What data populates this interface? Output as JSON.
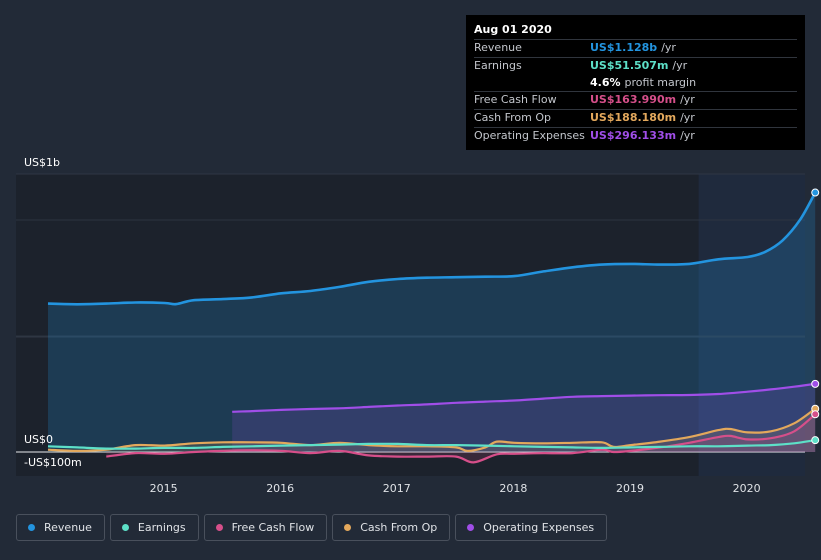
{
  "chart_data": {
    "type": "line",
    "title": "",
    "y_axis_top_label": "US$1b",
    "y_axis_zero_label": "US$0",
    "y_axis_bottom_label": "-US$100m",
    "x_ticks": [
      "2015",
      "2016",
      "2017",
      "2018",
      "2019",
      "2020"
    ],
    "ylim": [
      -100,
      1200
    ],
    "xlim": [
      2014.0,
      2020.6
    ],
    "forecast_start": 2019.58,
    "series": [
      {
        "name": "Revenue",
        "color": "#2394df",
        "fill": true,
        "points": [
          [
            2014.0,
            645
          ],
          [
            2014.25,
            642
          ],
          [
            2014.5,
            645
          ],
          [
            2014.75,
            650
          ],
          [
            2015.0,
            648
          ],
          [
            2015.1,
            643
          ],
          [
            2015.25,
            660
          ],
          [
            2015.5,
            665
          ],
          [
            2015.75,
            672
          ],
          [
            2016.0,
            690
          ],
          [
            2016.25,
            700
          ],
          [
            2016.5,
            718
          ],
          [
            2016.75,
            740
          ],
          [
            2017.0,
            752
          ],
          [
            2017.25,
            758
          ],
          [
            2017.5,
            760
          ],
          [
            2017.75,
            762
          ],
          [
            2018.0,
            765
          ],
          [
            2018.25,
            785
          ],
          [
            2018.5,
            803
          ],
          [
            2018.75,
            815
          ],
          [
            2019.0,
            818
          ],
          [
            2019.25,
            815
          ],
          [
            2019.5,
            818
          ],
          [
            2019.75,
            838
          ],
          [
            2020.0,
            848
          ],
          [
            2020.15,
            870
          ],
          [
            2020.3,
            920
          ],
          [
            2020.45,
            1010
          ],
          [
            2020.58,
            1128
          ]
        ]
      },
      {
        "name": "Earnings",
        "color": "#5de0c8",
        "fill": false,
        "points": [
          [
            2014.0,
            25
          ],
          [
            2014.25,
            20
          ],
          [
            2014.5,
            15
          ],
          [
            2014.75,
            15
          ],
          [
            2015.0,
            18
          ],
          [
            2015.25,
            18
          ],
          [
            2015.5,
            22
          ],
          [
            2015.75,
            25
          ],
          [
            2016.0,
            28
          ],
          [
            2016.25,
            30
          ],
          [
            2016.5,
            32
          ],
          [
            2016.75,
            35
          ],
          [
            2017.0,
            35
          ],
          [
            2017.25,
            30
          ],
          [
            2017.5,
            30
          ],
          [
            2017.75,
            28
          ],
          [
            2018.0,
            25
          ],
          [
            2018.25,
            22
          ],
          [
            2018.5,
            20
          ],
          [
            2018.75,
            18
          ],
          [
            2019.0,
            20
          ],
          [
            2019.25,
            22
          ],
          [
            2019.5,
            25
          ],
          [
            2019.75,
            25
          ],
          [
            2020.0,
            28
          ],
          [
            2020.2,
            30
          ],
          [
            2020.4,
            38
          ],
          [
            2020.58,
            51.507
          ]
        ]
      },
      {
        "name": "Free Cash Flow",
        "color": "#d64f8a",
        "fill": true,
        "points": [
          [
            2014.5,
            -20
          ],
          [
            2014.75,
            -5
          ],
          [
            2015.0,
            -8
          ],
          [
            2015.25,
            0
          ],
          [
            2015.5,
            5
          ],
          [
            2015.75,
            8
          ],
          [
            2016.0,
            5
          ],
          [
            2016.25,
            -5
          ],
          [
            2016.5,
            5
          ],
          [
            2016.75,
            -15
          ],
          [
            2017.0,
            -20
          ],
          [
            2017.25,
            -20
          ],
          [
            2017.5,
            -20
          ],
          [
            2017.65,
            -45
          ],
          [
            2017.85,
            -10
          ],
          [
            2018.0,
            -8
          ],
          [
            2018.25,
            -5
          ],
          [
            2018.5,
            -5
          ],
          [
            2018.75,
            10
          ],
          [
            2018.85,
            0
          ],
          [
            2019.0,
            5
          ],
          [
            2019.25,
            20
          ],
          [
            2019.5,
            40
          ],
          [
            2019.75,
            65
          ],
          [
            2019.85,
            70
          ],
          [
            2020.0,
            55
          ],
          [
            2020.2,
            60
          ],
          [
            2020.4,
            90
          ],
          [
            2020.58,
            163.99
          ]
        ]
      },
      {
        "name": "Cash From Op",
        "color": "#e3a85c",
        "fill": true,
        "points": [
          [
            2014.0,
            10
          ],
          [
            2014.25,
            5
          ],
          [
            2014.5,
            10
          ],
          [
            2014.75,
            30
          ],
          [
            2015.0,
            28
          ],
          [
            2015.25,
            38
          ],
          [
            2015.5,
            42
          ],
          [
            2015.75,
            42
          ],
          [
            2016.0,
            40
          ],
          [
            2016.25,
            30
          ],
          [
            2016.5,
            40
          ],
          [
            2016.75,
            30
          ],
          [
            2017.0,
            25
          ],
          [
            2017.25,
            25
          ],
          [
            2017.5,
            20
          ],
          [
            2017.6,
            5
          ],
          [
            2017.75,
            20
          ],
          [
            2017.85,
            45
          ],
          [
            2018.0,
            40
          ],
          [
            2018.25,
            38
          ],
          [
            2018.5,
            40
          ],
          [
            2018.75,
            42
          ],
          [
            2018.85,
            22
          ],
          [
            2019.0,
            30
          ],
          [
            2019.25,
            45
          ],
          [
            2019.5,
            65
          ],
          [
            2019.75,
            95
          ],
          [
            2019.85,
            100
          ],
          [
            2020.0,
            85
          ],
          [
            2020.2,
            90
          ],
          [
            2020.4,
            125
          ],
          [
            2020.58,
            188.18
          ]
        ]
      },
      {
        "name": "Operating Expenses",
        "color": "#a04ee8",
        "fill": true,
        "points": [
          [
            2015.58,
            175
          ],
          [
            2015.75,
            178
          ],
          [
            2016.0,
            183
          ],
          [
            2016.25,
            187
          ],
          [
            2016.5,
            190
          ],
          [
            2016.75,
            196
          ],
          [
            2017.0,
            202
          ],
          [
            2017.25,
            207
          ],
          [
            2017.5,
            214
          ],
          [
            2017.75,
            219
          ],
          [
            2018.0,
            224
          ],
          [
            2018.25,
            232
          ],
          [
            2018.5,
            240
          ],
          [
            2018.75,
            243
          ],
          [
            2019.0,
            245
          ],
          [
            2019.25,
            247
          ],
          [
            2019.5,
            248
          ],
          [
            2019.75,
            252
          ],
          [
            2020.0,
            262
          ],
          [
            2020.2,
            272
          ],
          [
            2020.4,
            284
          ],
          [
            2020.58,
            296.133
          ]
        ]
      }
    ]
  },
  "tooltip": {
    "date": "Aug 01 2020",
    "revenue_label": "Revenue",
    "revenue_value": "US$1.128b",
    "revenue_unit": "/yr",
    "earnings_label": "Earnings",
    "earnings_value": "US$51.507m",
    "earnings_unit": "/yr",
    "margin_value": "4.6%",
    "margin_label": "profit margin",
    "fcf_label": "Free Cash Flow",
    "fcf_value": "US$163.990m",
    "fcf_unit": "/yr",
    "cfo_label": "Cash From Op",
    "cfo_value": "US$188.180m",
    "cfo_unit": "/yr",
    "opex_label": "Operating Expenses",
    "opex_value": "US$296.133m",
    "opex_unit": "/yr",
    "colors": {
      "revenue": "#2394df",
      "earnings": "#5de0c8",
      "fcf": "#d64f8a",
      "cfo": "#e3a85c",
      "opex": "#a04ee8"
    }
  },
  "legend": {
    "items": [
      {
        "label": "Revenue",
        "color": "#2394df"
      },
      {
        "label": "Earnings",
        "color": "#5de0c8"
      },
      {
        "label": "Free Cash Flow",
        "color": "#d64f8a"
      },
      {
        "label": "Cash From Op",
        "color": "#e3a85c"
      },
      {
        "label": "Operating Expenses",
        "color": "#a04ee8"
      }
    ]
  }
}
